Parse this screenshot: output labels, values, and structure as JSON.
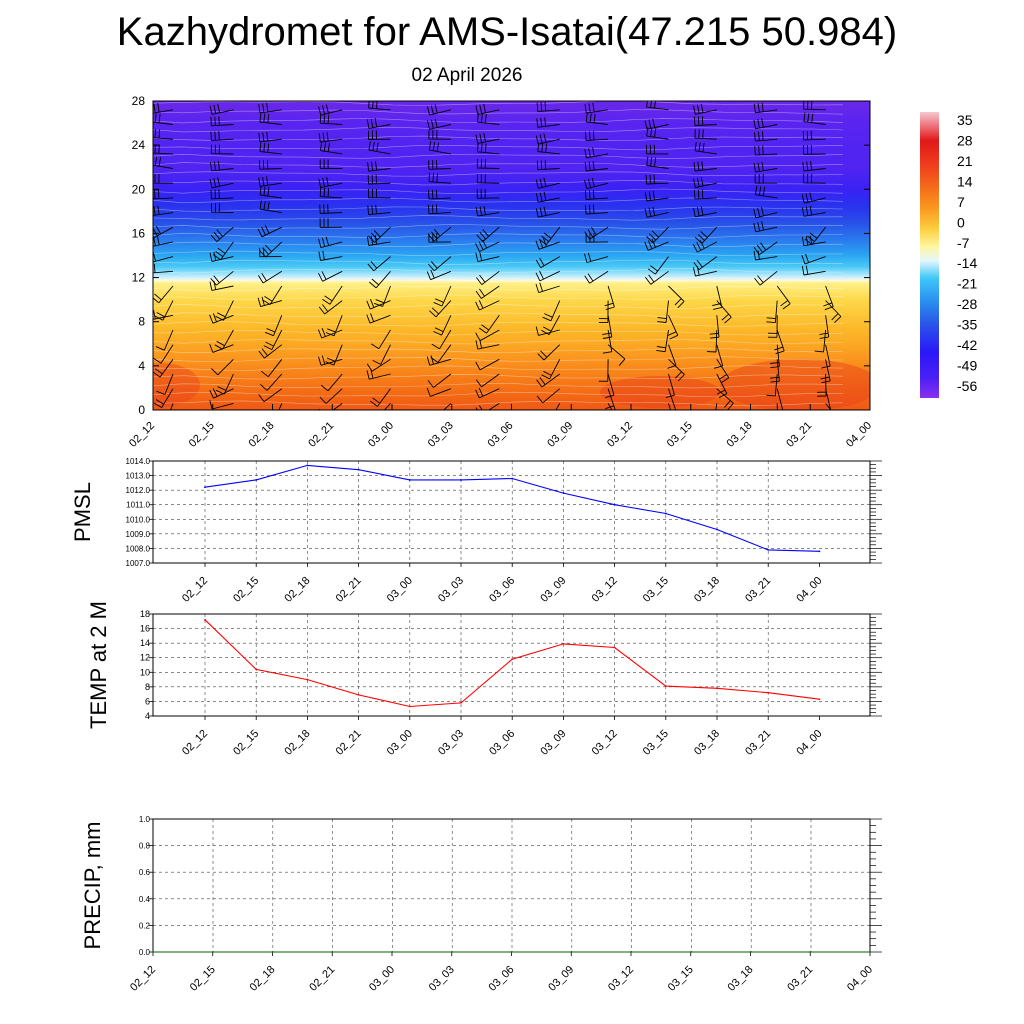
{
  "header": {
    "title": "Kazhydromet for AMS-Isatai(47.215 50.984)",
    "subtitle": "02 April 2026"
  },
  "colors": {
    "pmsl_line": "#0000ff",
    "temp_line": "#ff0000",
    "precip_line": "#006400",
    "barb": "#000000"
  },
  "chart_data": [
    {
      "id": "cross_section",
      "type": "heatmap",
      "y_ticks": [
        "0",
        "4",
        "8",
        "12",
        "16",
        "20",
        "24",
        "28"
      ],
      "ylim": [
        0,
        28
      ],
      "x_ticks": [
        "02_12",
        "02_15",
        "02_18",
        "02_21",
        "03_00",
        "03_03",
        "03_06",
        "03_09",
        "03_12",
        "03_15",
        "03_18",
        "03_21",
        "04_00"
      ],
      "colorbar_labels": [
        "35",
        "28",
        "21",
        "14",
        "7",
        "0",
        "-7",
        "-14",
        "-21",
        "-28",
        "-35",
        "-42",
        "-49",
        "-56"
      ],
      "colorbar_colors": [
        "#ffffff",
        "#f0a0a8",
        "#e02020",
        "#ee4020",
        "#f56a1a",
        "#fb9a20",
        "#fdd040",
        "#fff8a8",
        "#d8f4ff",
        "#40c8f8",
        "#2070f0",
        "#3040e8",
        "#2a18f8",
        "#7030f0"
      ],
      "temperature_profile": {
        "height": [
          0,
          2,
          4,
          6,
          8,
          10,
          11.5,
          12,
          13,
          14,
          16,
          18,
          20,
          22,
          24,
          26,
          28
        ],
        "temp": [
          12,
          8,
          4,
          0,
          -3,
          -6,
          -10,
          -17,
          -24,
          -30,
          -38,
          -46,
          -52,
          -55,
          -55,
          -56,
          -60
        ]
      },
      "wind_barbs": true
    },
    {
      "id": "pmsl",
      "type": "line",
      "ylabel": "PMSL",
      "ylim": [
        1007,
        1014
      ],
      "y_ticks": [
        "1007.0",
        "1008.0",
        "1009.0",
        "1010.0",
        "1011.0",
        "1012.0",
        "1013.0",
        "1014.0"
      ],
      "categories": [
        "02_12",
        "02_15",
        "02_18",
        "02_21",
        "03_00",
        "03_03",
        "03_06",
        "03_09",
        "03_12",
        "03_15",
        "03_18",
        "03_21",
        "04_00"
      ],
      "values": [
        1012.2,
        1012.7,
        1013.7,
        1013.4,
        1012.7,
        1012.7,
        1012.8,
        1011.8,
        1011.0,
        1010.4,
        1009.3,
        1007.9,
        1007.8
      ]
    },
    {
      "id": "temp2m",
      "type": "line",
      "ylabel": "TEMP at 2 M",
      "ylim": [
        4,
        18
      ],
      "y_ticks": [
        "4",
        "6",
        "8",
        "10",
        "12",
        "14",
        "16",
        "18"
      ],
      "categories": [
        "02_12",
        "02_15",
        "02_18",
        "02_21",
        "03_00",
        "03_03",
        "03_06",
        "03_09",
        "03_12",
        "03_15",
        "03_18",
        "03_21",
        "04_00"
      ],
      "values": [
        17.2,
        10.4,
        9.0,
        6.9,
        5.3,
        5.8,
        11.8,
        13.9,
        13.4,
        8.1,
        7.8,
        7.2,
        6.3
      ]
    },
    {
      "id": "precip",
      "type": "line",
      "ylabel": "PRECIP, mm",
      "ylim": [
        0,
        1
      ],
      "y_ticks": [
        "0.0",
        "0.2",
        "0.4",
        "0.6",
        "0.8",
        "1.0"
      ],
      "categories": [
        "02_12",
        "02_15",
        "02_18",
        "02_21",
        "03_00",
        "03_03",
        "03_06",
        "03_09",
        "03_12",
        "03_15",
        "03_18",
        "03_21",
        "04_00"
      ],
      "values": [
        0,
        0,
        0,
        0,
        0,
        0,
        0,
        0,
        0,
        0,
        0,
        0,
        0
      ]
    }
  ]
}
